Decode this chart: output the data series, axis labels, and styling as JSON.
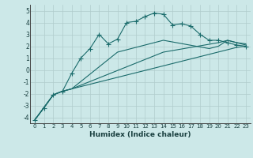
{
  "xlabel": "Humidex (Indice chaleur)",
  "bg_color": "#cce8e8",
  "grid_color": "#b0cccc",
  "line_color": "#1a6b6b",
  "xlim": [
    -0.5,
    23.5
  ],
  "ylim": [
    -4.5,
    5.5
  ],
  "xticks": [
    0,
    1,
    2,
    3,
    4,
    5,
    6,
    7,
    8,
    9,
    10,
    11,
    12,
    13,
    14,
    15,
    16,
    17,
    18,
    19,
    20,
    21,
    22,
    23
  ],
  "yticks": [
    -4,
    -3,
    -2,
    -1,
    0,
    1,
    2,
    3,
    4,
    5
  ],
  "series": [
    {
      "x": [
        0,
        2,
        3,
        4,
        22,
        23
      ],
      "y": [
        -4.2,
        -2.1,
        -1.8,
        -1.6,
        1.9,
        2.0
      ],
      "marker": false
    },
    {
      "x": [
        0,
        2,
        3,
        4,
        14,
        20,
        21,
        22,
        23
      ],
      "y": [
        -4.2,
        -2.1,
        -1.8,
        -1.6,
        1.5,
        2.3,
        2.5,
        2.3,
        2.2
      ],
      "marker": false
    },
    {
      "x": [
        0,
        2,
        3,
        4,
        9,
        14,
        19,
        20,
        21,
        22,
        23
      ],
      "y": [
        -4.2,
        -2.1,
        -1.8,
        -1.6,
        1.5,
        2.5,
        1.8,
        2.0,
        2.5,
        2.3,
        2.1
      ],
      "marker": false
    },
    {
      "x": [
        0,
        1,
        2,
        3,
        4,
        5,
        6,
        7,
        8,
        9,
        10,
        11,
        12,
        13,
        14,
        15,
        16,
        17,
        18,
        19,
        20,
        21,
        22,
        23
      ],
      "y": [
        -4.2,
        -3.2,
        -2.1,
        -1.8,
        -0.3,
        1.0,
        1.8,
        3.0,
        2.2,
        2.6,
        4.0,
        4.1,
        4.5,
        4.8,
        4.7,
        3.8,
        3.9,
        3.7,
        3.0,
        2.5,
        2.5,
        2.3,
        2.1,
        2.0
      ],
      "marker": true
    }
  ]
}
